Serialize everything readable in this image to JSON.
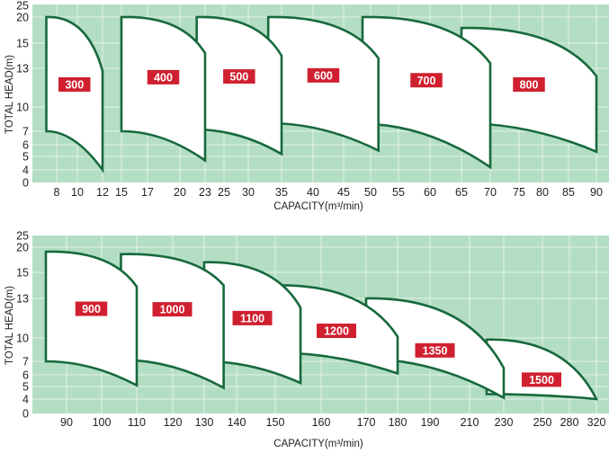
{
  "chart_data": [
    {
      "type": "area",
      "title": "",
      "xlabel": "CAPACITY(m³/min)",
      "ylabel": "TOTAL HEAD(m)",
      "x_ticks": [
        8,
        10,
        12,
        15,
        17,
        20,
        23,
        25,
        30,
        35,
        40,
        45,
        50,
        55,
        60,
        65,
        70,
        75,
        80,
        85,
        90
      ],
      "y_ticks": [
        25,
        20,
        15,
        13,
        10,
        7,
        6,
        5,
        4,
        0
      ],
      "grid": true,
      "regions": [
        {
          "name": "300",
          "q": [
            7,
            12
          ],
          "head_top": [
            20,
            12.8
          ],
          "head_bottom": [
            7,
            4
          ]
        },
        {
          "name": "400",
          "q": [
            15,
            23
          ],
          "head_top": [
            20,
            14.2
          ],
          "head_bottom": [
            7,
            4.7
          ]
        },
        {
          "name": "500",
          "q": [
            22,
            35
          ],
          "head_top": [
            20,
            14
          ],
          "head_bottom": [
            7.2,
            5.2
          ]
        },
        {
          "name": "600",
          "q": [
            33,
            51.4
          ],
          "head_top": [
            20,
            13.8
          ],
          "head_bottom": [
            8,
            5.5
          ]
        },
        {
          "name": "700",
          "q": [
            48.5,
            70
          ],
          "head_top": [
            20,
            13.4
          ],
          "head_bottom": [
            7.9,
            4.2
          ]
        },
        {
          "name": "800",
          "q": [
            65,
            90
          ],
          "head_top": [
            17.9,
            12.4
          ],
          "head_bottom": [
            8,
            5.4
          ]
        }
      ]
    },
    {
      "type": "area",
      "title": "",
      "xlabel": "CAPACITY(m³/min)",
      "ylabel": "TOTAL HEAD(m)",
      "x_ticks": [
        90,
        100,
        110,
        120,
        130,
        140,
        150,
        160,
        170,
        180,
        190,
        210,
        230,
        250,
        280,
        320
      ],
      "y_ticks": [
        25,
        20,
        15,
        13,
        10,
        7,
        6,
        5,
        4,
        0
      ],
      "grid": true,
      "regions": [
        {
          "name": "900",
          "q": [
            84.1,
            110
          ],
          "head_top": [
            19.1,
            13.9
          ],
          "head_bottom": [
            7,
            5.1
          ]
        },
        {
          "name": "1000",
          "q": [
            105.5,
            136
          ],
          "head_top": [
            18.6,
            14
          ],
          "head_bottom": [
            7.2,
            4.9
          ]
        },
        {
          "name": "1100",
          "q": [
            130,
            155.5
          ],
          "head_top": [
            17,
            12.3
          ],
          "head_bottom": [
            7,
            5.3
          ]
        },
        {
          "name": "1200",
          "q": [
            150,
            180
          ],
          "head_top": [
            14,
            10.1
          ],
          "head_bottom": [
            8.1,
            6.1
          ]
        },
        {
          "name": "1350",
          "q": [
            170,
            230
          ],
          "head_top": [
            13,
            6.5
          ],
          "head_bottom": [
            7.3,
            4.1
          ]
        },
        {
          "name": "1500",
          "q": [
            220,
            320
          ],
          "head_top": [
            9.8,
            4
          ],
          "head_bottom": [
            4.4,
            4
          ]
        }
      ]
    }
  ]
}
